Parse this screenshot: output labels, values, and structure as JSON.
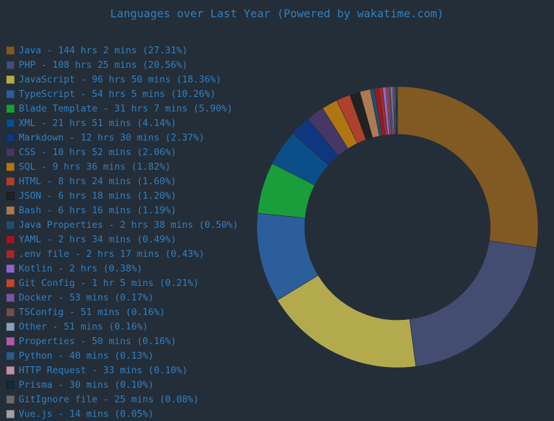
{
  "chart_data": {
    "type": "pie",
    "title": "Languages over Last Year (Powered by wakatime.com)",
    "donut": true,
    "legend_position": "left",
    "series": [
      {
        "label": "Java - 144 hrs 2 mins (27.31%)",
        "value": 27.31,
        "color": "#805a22"
      },
      {
        "label": "PHP - 108 hrs 25 mins (20.56%)",
        "value": 20.56,
        "color": "#434c71"
      },
      {
        "label": "JavaScript - 96 hrs 50 mins (18.36%)",
        "value": 18.36,
        "color": "#b3aa4e"
      },
      {
        "label": "TypeScript - 54 hrs 5 mins (10.26%)",
        "value": 10.26,
        "color": "#2c5e9b"
      },
      {
        "label": "Blade Template - 31 hrs 7 mins (5.90%)",
        "value": 5.9,
        "color": "#1a9e3c"
      },
      {
        "label": "XML - 21 hrs 51 mins (4.14%)",
        "value": 4.14,
        "color": "#0a4f88"
      },
      {
        "label": "Markdown - 12 hrs 30 mins (2.37%)",
        "value": 2.37,
        "color": "#0f3780"
      },
      {
        "label": "CSS - 10 hrs 52 mins (2.06%)",
        "value": 2.06,
        "color": "#473767"
      },
      {
        "label": "SQL - 9 hrs 36 mins (1.82%)",
        "value": 1.82,
        "color": "#b07613"
      },
      {
        "label": "HTML - 8 hrs 24 mins (1.60%)",
        "value": 1.6,
        "color": "#b0402b"
      },
      {
        "label": "JSON - 6 hrs 18 mins (1.20%)",
        "value": 1.2,
        "color": "#212121"
      },
      {
        "label": "Bash - 6 hrs 16 mins (1.19%)",
        "value": 1.19,
        "color": "#ae7a52"
      },
      {
        "label": "Java Properties - 2 hrs 38 mins (0.50%)",
        "value": 0.5,
        "color": "#234f66"
      },
      {
        "label": "YAML - 2 hrs 34 mins (0.49%)",
        "value": 0.49,
        "color": "#a11721"
      },
      {
        "label": ".env file - 2 hrs 17 mins (0.43%)",
        "value": 0.43,
        "color": "#a52a2a"
      },
      {
        "label": "Kotlin - 2 hrs (0.38%)",
        "value": 0.38,
        "color": "#8f66c9"
      },
      {
        "label": "Git Config - 1 hr 5 mins (0.21%)",
        "value": 0.21,
        "color": "#c2462c"
      },
      {
        "label": "Docker - 53 mins (0.17%)",
        "value": 0.17,
        "color": "#7a56a1"
      },
      {
        "label": "TSConfig - 51 mins (0.16%)",
        "value": 0.16,
        "color": "#71504a"
      },
      {
        "label": "Other - 51 mins (0.16%)",
        "value": 0.16,
        "color": "#8a9fb9"
      },
      {
        "label": "Properties - 50 mins (0.16%)",
        "value": 0.16,
        "color": "#b05cab"
      },
      {
        "label": "Python - 40 mins (0.13%)",
        "value": 0.13,
        "color": "#2a5b85"
      },
      {
        "label": "HTTP Request - 33 mins (0.10%)",
        "value": 0.1,
        "color": "#bd8fa8"
      },
      {
        "label": "Prisma - 30 mins (0.10%)",
        "value": 0.1,
        "color": "#16273b"
      },
      {
        "label": "GitIgnore file - 25 mins (0.08%)",
        "value": 0.08,
        "color": "#6b6b6b"
      },
      {
        "label": "Vue.js - 14 mins (0.05%)",
        "value": 0.05,
        "color": "#a0a0a0"
      }
    ]
  }
}
